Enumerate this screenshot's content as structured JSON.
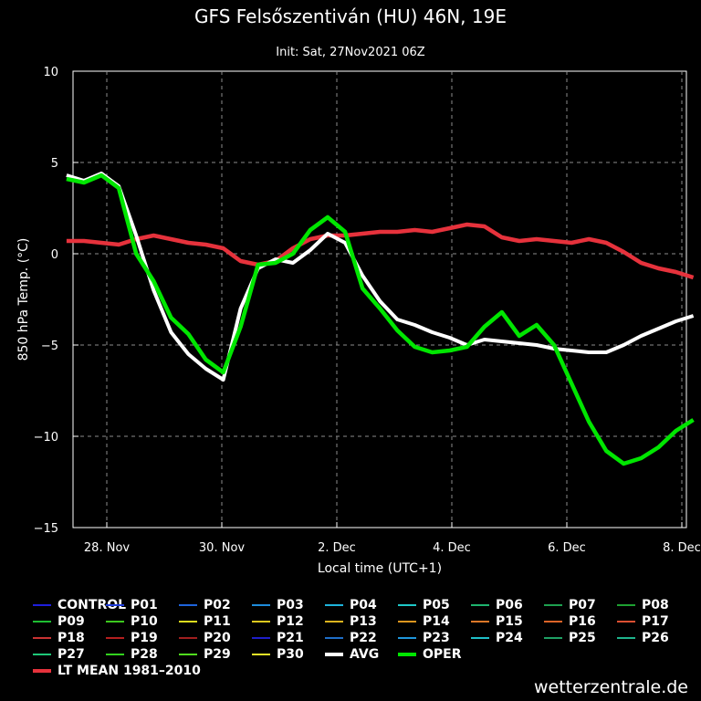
{
  "chart_data": {
    "type": "line",
    "title": "GFS Felsőszentiván (HU) 46N, 19E",
    "subtitle": "Init: Sat, 27Nov2021 06Z",
    "xlabel": "Local time (UTC+1)",
    "ylabel": "850 hPa Temp. (°C)",
    "ylim": [
      -15,
      10
    ],
    "yticks": [
      10,
      5,
      0,
      -5,
      -10,
      -15
    ],
    "ytick_labels": [
      "10",
      "5",
      "0",
      "−5",
      "−10",
      "−15"
    ],
    "xlim_days": [
      0.25,
      11.25
    ],
    "xticks_days": [
      1,
      4,
      7,
      10
    ],
    "xtick_labels": [
      "28. Nov",
      "30. Nov",
      "2. Dec",
      "4. Dec",
      "6. Dec",
      "8. Dec"
    ],
    "xtick_positions_days": [
      0,
      1,
      2,
      3,
      4,
      5
    ],
    "grid": true,
    "legend_position": "bottom",
    "series": [
      {
        "name": "AVG",
        "color": "#ffffff",
        "values": [
          4.3,
          4.0,
          4.4,
          3.7,
          1.0,
          -2.0,
          -4.3,
          -5.5,
          -6.3,
          -6.9,
          -3.0,
          -0.8,
          -0.3,
          -0.5,
          0.2,
          1.1,
          0.6,
          -1.2,
          -2.6,
          -3.6,
          -3.9,
          -4.3,
          -4.6,
          -5.0,
          -4.7,
          -4.8,
          -4.9,
          -5.0,
          -5.2,
          -5.3,
          -5.4,
          -5.4,
          -5.0,
          -4.5,
          -4.1,
          -3.7,
          -3.4
        ]
      },
      {
        "name": "OPER",
        "color": "#00e600",
        "values": [
          4.1,
          3.9,
          4.3,
          3.6,
          0.0,
          -1.5,
          -3.5,
          -4.4,
          -5.8,
          -6.5,
          -4.0,
          -0.6,
          -0.5,
          0.0,
          1.3,
          2.0,
          1.2,
          -1.9,
          -3.0,
          -4.2,
          -5.1,
          -5.4,
          -5.3,
          -5.1,
          -4.0,
          -3.2,
          -4.5,
          -3.9,
          -5.0,
          -7.1,
          -9.2,
          -10.8,
          -11.5,
          -11.2,
          -10.6,
          -9.7,
          -9.1
        ]
      },
      {
        "name": "LT MEAN 1981-2010",
        "color": "#e6323c",
        "values": [
          0.7,
          0.7,
          0.6,
          0.5,
          0.8,
          1.0,
          0.8,
          0.6,
          0.5,
          0.3,
          -0.4,
          -0.6,
          -0.4,
          0.3,
          0.8,
          1.0,
          1.0,
          1.1,
          1.2,
          1.2,
          1.3,
          1.2,
          1.4,
          1.6,
          1.5,
          0.9,
          0.7,
          0.8,
          0.7,
          0.6,
          0.8,
          0.6,
          0.1,
          -0.5,
          -0.8,
          -1.0,
          -1.3
        ]
      }
    ],
    "legend_entries": [
      {
        "name": "CONTROL",
        "color": "#1e1edc"
      },
      {
        "name": "P01",
        "color": "#1e3cdc"
      },
      {
        "name": "P02",
        "color": "#1e64dc"
      },
      {
        "name": "P03",
        "color": "#1e8cdc"
      },
      {
        "name": "P04",
        "color": "#1eb4dc"
      },
      {
        "name": "P05",
        "color": "#1ec8c8"
      },
      {
        "name": "P06",
        "color": "#1eb46e"
      },
      {
        "name": "P07",
        "color": "#1ea050"
      },
      {
        "name": "P08",
        "color": "#1ea032"
      },
      {
        "name": "P09",
        "color": "#1ebe32"
      },
      {
        "name": "P10",
        "color": "#3cc81e"
      },
      {
        "name": "P11",
        "color": "#dcdc1e"
      },
      {
        "name": "P12",
        "color": "#dcc81e"
      },
      {
        "name": "P13",
        "color": "#dcb41e"
      },
      {
        "name": "P14",
        "color": "#dc961e"
      },
      {
        "name": "P15",
        "color": "#dc7828"
      },
      {
        "name": "P16",
        "color": "#dc6428"
      },
      {
        "name": "P17",
        "color": "#dc5032"
      },
      {
        "name": "P18",
        "color": "#c83232"
      },
      {
        "name": "P19",
        "color": "#b41e1e"
      },
      {
        "name": "P20",
        "color": "#a01e1e"
      },
      {
        "name": "P21",
        "color": "#1e1ec8"
      },
      {
        "name": "P22",
        "color": "#1e6ec8"
      },
      {
        "name": "P23",
        "color": "#1e96dc"
      },
      {
        "name": "P24",
        "color": "#1ebec8"
      },
      {
        "name": "P25",
        "color": "#1ea064"
      },
      {
        "name": "P26",
        "color": "#1eb48c"
      },
      {
        "name": "P27",
        "color": "#1ec878"
      },
      {
        "name": "P28",
        "color": "#32d21e"
      },
      {
        "name": "P29",
        "color": "#50dc1e"
      },
      {
        "name": "P30",
        "color": "#e6e628"
      },
      {
        "name": "AVG",
        "color": "#ffffff"
      },
      {
        "name": "OPER",
        "color": "#00e600"
      },
      {
        "name": "LT MEAN 1981–2010",
        "color": "#e6323c"
      }
    ]
  },
  "credit": "wetterzentrale.de"
}
